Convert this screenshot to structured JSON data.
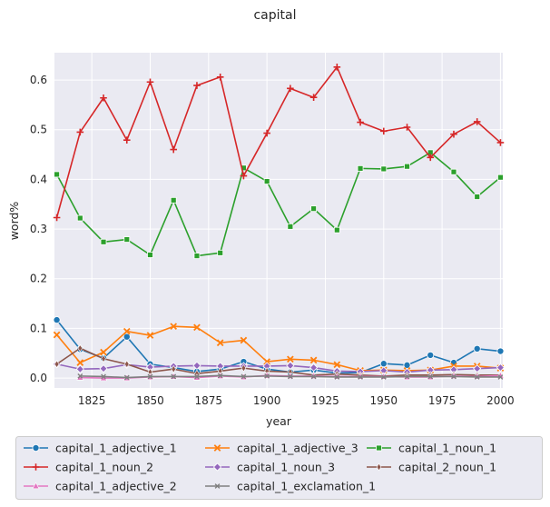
{
  "chart_data": {
    "type": "line",
    "title": "capital",
    "xlabel": "year",
    "ylabel": "word%",
    "xlim": [
      1809,
      2001
    ],
    "ylim": [
      -0.02,
      0.655
    ],
    "xticks": [
      1825,
      1850,
      1875,
      1900,
      1925,
      1950,
      1975,
      2000
    ],
    "yticks": [
      0.0,
      0.1,
      0.2,
      0.3,
      0.4,
      0.5,
      0.6
    ],
    "grid": true,
    "legend_position": "below",
    "x": [
      1810,
      1820,
      1830,
      1840,
      1850,
      1860,
      1870,
      1880,
      1890,
      1900,
      1910,
      1920,
      1930,
      1940,
      1950,
      1960,
      1970,
      1980,
      1990,
      2000
    ],
    "series": [
      {
        "name": "capital_1_adjective_1",
        "color": "#1f77b4",
        "marker": "circle",
        "values": [
          0.117,
          0.058,
          0.04,
          0.083,
          0.028,
          0.021,
          0.013,
          0.018,
          0.033,
          0.018,
          0.012,
          0.016,
          0.01,
          0.011,
          0.029,
          0.026,
          0.046,
          0.031,
          0.059,
          0.054
        ]
      },
      {
        "name": "capital_1_adjective_3",
        "color": "#ff7f0e",
        "marker": "x",
        "values": [
          0.087,
          0.031,
          0.052,
          0.094,
          0.086,
          0.104,
          0.102,
          0.071,
          0.076,
          0.033,
          0.038,
          0.036,
          0.027,
          0.015,
          0.016,
          0.015,
          0.016,
          0.024,
          0.024,
          0.02
        ]
      },
      {
        "name": "capital_1_noun_1",
        "color": "#2ca02c",
        "marker": "square",
        "values": [
          0.41,
          0.322,
          0.274,
          0.279,
          0.248,
          0.358,
          0.246,
          0.252,
          0.423,
          0.396,
          0.305,
          0.341,
          0.298,
          0.422,
          0.421,
          0.426,
          0.454,
          0.415,
          0.365,
          0.404
        ]
      },
      {
        "name": "capital_1_noun_2",
        "color": "#d62728",
        "marker": "plus",
        "values": [
          0.323,
          0.495,
          0.564,
          0.479,
          0.596,
          0.46,
          0.589,
          0.606,
          0.407,
          0.493,
          0.583,
          0.565,
          0.626,
          0.515,
          0.497,
          0.505,
          0.444,
          0.491,
          0.516,
          0.474
        ]
      },
      {
        "name": "capital_1_noun_3",
        "color": "#9467bd",
        "marker": "diamond",
        "values": [
          0.028,
          0.018,
          0.019,
          0.027,
          0.022,
          0.024,
          0.025,
          0.024,
          0.024,
          0.024,
          0.025,
          0.021,
          0.014,
          0.013,
          0.015,
          0.012,
          0.016,
          0.017,
          0.019,
          0.021
        ]
      },
      {
        "name": "capital_2_noun_1",
        "color": "#8c564b",
        "marker": "thin-diamond",
        "values": [
          0.028,
          0.06,
          0.039,
          0.028,
          0.012,
          0.018,
          0.009,
          0.014,
          0.02,
          0.014,
          0.012,
          0.006,
          0.008,
          0.006,
          0.004,
          0.006,
          0.006,
          0.007,
          0.006,
          0.006
        ]
      },
      {
        "name": "capital_1_adjective_2",
        "color": "#e377c2",
        "marker": "triangle",
        "values": [
          null,
          0.001,
          0.0,
          0.0,
          0.002,
          0.003,
          0.001,
          0.004,
          0.002,
          0.005,
          0.004,
          0.004,
          0.003,
          0.003,
          0.003,
          0.002,
          0.002,
          0.004,
          0.003,
          0.005
        ]
      },
      {
        "name": "capital_1_exclamation_1",
        "color": "#7f7f7f",
        "marker": "small-x",
        "values": [
          null,
          0.004,
          0.003,
          0.001,
          0.003,
          0.003,
          0.003,
          0.005,
          0.003,
          0.004,
          0.003,
          0.003,
          0.002,
          0.002,
          0.002,
          0.003,
          0.003,
          0.003,
          0.002,
          0.002
        ]
      }
    ],
    "legend_order": [
      0,
      3,
      6,
      1,
      4,
      7,
      2,
      5
    ]
  }
}
